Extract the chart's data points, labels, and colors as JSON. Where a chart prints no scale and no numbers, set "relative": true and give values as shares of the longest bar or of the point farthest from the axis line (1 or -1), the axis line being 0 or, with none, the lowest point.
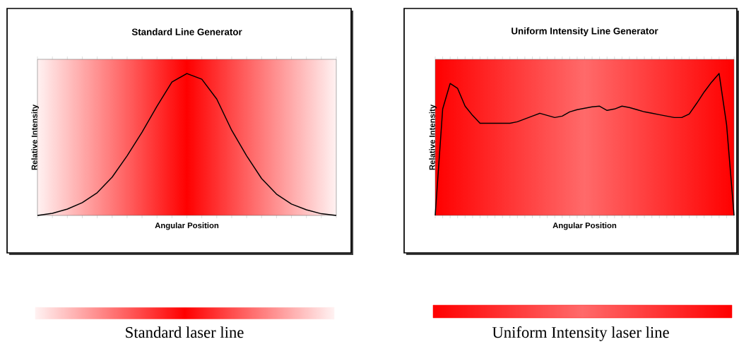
{
  "chart_data": [
    {
      "type": "line",
      "title": "Standard Line Generator",
      "xlabel": "Angular Position",
      "ylabel": "Relative Intensity",
      "relative": true,
      "grid": false,
      "marker": "none",
      "categories": [
        null,
        null,
        null,
        null,
        null,
        null,
        null,
        null,
        null,
        null,
        null,
        null,
        null,
        null,
        null,
        null,
        null,
        null,
        null,
        null,
        null
      ],
      "series": [
        {
          "color": "#000000",
          "values": [
            0,
            0.015,
            0.045,
            0.09,
            0.16,
            0.27,
            0.42,
            0.587,
            0.77,
            0.94,
            1.0,
            0.96,
            0.82,
            0.6,
            0.42,
            0.26,
            0.15,
            0.08,
            0.04,
            0.012,
            0
          ]
        }
      ],
      "annotations": [
        "Standard laser line"
      ]
    },
    {
      "type": "line",
      "title": "Uniform Intensity Line Generator",
      "xlabel": "Angular Position",
      "ylabel": "Relative Intensity",
      "relative": true,
      "grid": false,
      "marker": "none",
      "categories": [
        null,
        null,
        null,
        null,
        null,
        null,
        null,
        null,
        null,
        null,
        null,
        null,
        null,
        null,
        null,
        null,
        null,
        null,
        null,
        null,
        null,
        null,
        null,
        null,
        null,
        null,
        null,
        null,
        null,
        null,
        null,
        null,
        null,
        null,
        null,
        null,
        null,
        null,
        null,
        null,
        null
      ],
      "series": [
        {
          "color": "#000000",
          "values": [
            0,
            0.75,
            0.93,
            0.895,
            0.77,
            0.705,
            0.65,
            0.65,
            0.65,
            0.65,
            0.65,
            0.66,
            0.68,
            0.7,
            0.72,
            0.705,
            0.69,
            0.7,
            0.73,
            0.745,
            0.755,
            0.765,
            0.77,
            0.74,
            0.75,
            0.77,
            0.76,
            0.745,
            0.73,
            0.72,
            0.71,
            0.7,
            0.69,
            0.69,
            0.715,
            0.79,
            0.87,
            0.94,
            1.0,
            0.64,
            0
          ]
        }
      ],
      "annotations": [
        "Uniform Intensity laser line"
      ]
    }
  ]
}
